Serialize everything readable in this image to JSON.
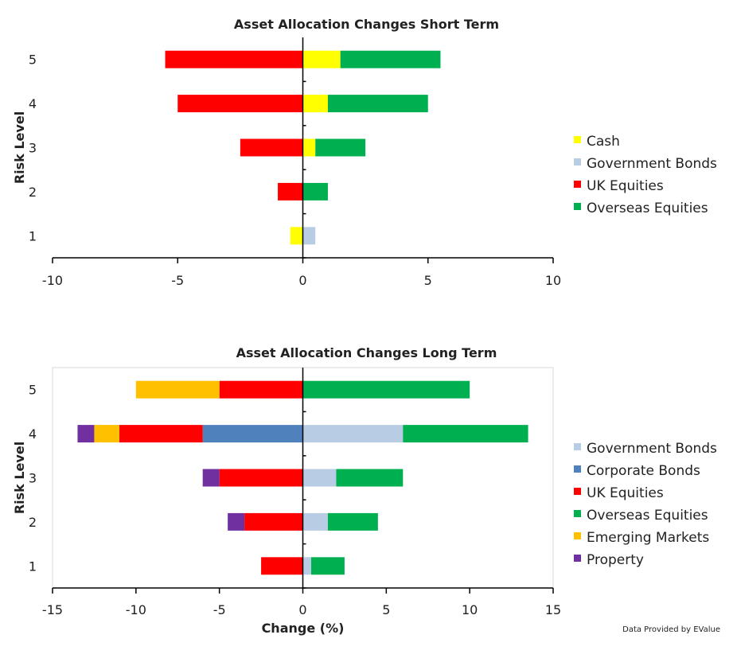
{
  "colors": {
    "Cash": "#ffff00",
    "Government Bonds": "#b8cce4",
    "Corporate Bonds": "#4f81bd",
    "UK Equities": "#ff0000",
    "Overseas Equities": "#00b050",
    "Emerging Markets": "#ffc000",
    "Property": "#7030a0"
  },
  "credit": "Data Provided by EValue",
  "chart_data": [
    {
      "type": "bar",
      "orientation": "horizontal",
      "stacked": true,
      "title": "Asset Allocation Changes Short Term",
      "ylabel": "Risk Level",
      "xlabel": "",
      "categories": [
        "1",
        "2",
        "3",
        "4",
        "5"
      ],
      "xlim": [
        -10,
        10
      ],
      "xticks": [
        -10,
        -5,
        0,
        5,
        10
      ],
      "grid": false,
      "legend_position": "right",
      "legend": [
        "Cash",
        "Government Bonds",
        "UK Equities",
        "Overseas Equities"
      ],
      "series": [
        {
          "name": "Cash",
          "values": [
            -0.5,
            0,
            0.5,
            1,
            1.5
          ]
        },
        {
          "name": "Government Bonds",
          "values": [
            0.5,
            0,
            0,
            0,
            0
          ]
        },
        {
          "name": "UK Equities",
          "values": [
            0,
            -1,
            -2.5,
            -5,
            -5.5
          ]
        },
        {
          "name": "Overseas Equities",
          "values": [
            0,
            1,
            2,
            4,
            4
          ]
        }
      ]
    },
    {
      "type": "bar",
      "orientation": "horizontal",
      "stacked": true,
      "title": "Asset Allocation Changes Long Term",
      "ylabel": "Risk Level",
      "xlabel": "Change (%)",
      "categories": [
        "1",
        "2",
        "3",
        "4",
        "5"
      ],
      "xlim": [
        -15,
        15
      ],
      "xticks": [
        -15,
        -10,
        -5,
        0,
        5,
        10,
        15
      ],
      "grid": false,
      "legend_position": "right",
      "legend": [
        "Government Bonds",
        "Corporate Bonds",
        "UK Equities",
        "Overseas Equities",
        "Emerging Markets",
        "Property"
      ],
      "series": [
        {
          "name": "Government Bonds",
          "values": [
            0.5,
            1.5,
            2,
            6,
            0
          ]
        },
        {
          "name": "Corporate Bonds",
          "values": [
            0,
            0,
            0,
            -6,
            0
          ]
        },
        {
          "name": "UK Equities",
          "values": [
            -2.5,
            -3.5,
            -5,
            -5,
            -5
          ]
        },
        {
          "name": "Overseas Equities",
          "values": [
            2,
            3,
            4,
            7.5,
            10
          ]
        },
        {
          "name": "Emerging Markets",
          "values": [
            0,
            0,
            0,
            -1.5,
            -5
          ]
        },
        {
          "name": "Property",
          "values": [
            0,
            -1,
            -1,
            -1,
            0
          ]
        }
      ]
    }
  ]
}
